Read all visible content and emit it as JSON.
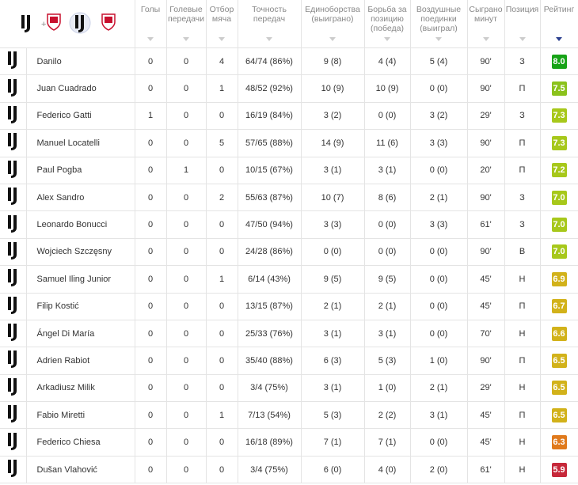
{
  "header": {
    "columns": [
      "Голы",
      "Голевые передачи",
      "Отбор мяча",
      "Точность передач",
      "Единоборства (выиграно)",
      "Борьба за позицию (победа)",
      "Воздушные поединки (выиграл)",
      "Сыграно минут",
      "Позиция",
      "Рейтинг"
    ]
  },
  "table": {
    "rows": [
      [
        "Danilo",
        "0",
        "0",
        "4",
        "64/74 (86%)",
        "9 (8)",
        "4 (4)",
        "5 (4)",
        "90'",
        "З",
        "8.0"
      ],
      [
        "Juan Cuadrado",
        "0",
        "0",
        "1",
        "48/52 (92%)",
        "10 (9)",
        "10 (9)",
        "0 (0)",
        "90'",
        "П",
        "7.5"
      ],
      [
        "Federico Gatti",
        "1",
        "0",
        "0",
        "16/19 (84%)",
        "3 (2)",
        "0 (0)",
        "3 (2)",
        "29'",
        "З",
        "7.3"
      ],
      [
        "Manuel Locatelli",
        "0",
        "0",
        "5",
        "57/65 (88%)",
        "14 (9)",
        "11 (6)",
        "3 (3)",
        "90'",
        "П",
        "7.3"
      ],
      [
        "Paul Pogba",
        "0",
        "1",
        "0",
        "10/15 (67%)",
        "3 (1)",
        "3 (1)",
        "0 (0)",
        "20'",
        "П",
        "7.2"
      ],
      [
        "Alex Sandro",
        "0",
        "0",
        "2",
        "55/63 (87%)",
        "10 (7)",
        "8 (6)",
        "2 (1)",
        "90'",
        "З",
        "7.0"
      ],
      [
        "Leonardo Bonucci",
        "0",
        "0",
        "0",
        "47/50 (94%)",
        "3 (3)",
        "0 (0)",
        "3 (3)",
        "61'",
        "З",
        "7.0"
      ],
      [
        "Wojciech Szczęsny",
        "0",
        "0",
        "0",
        "24/28 (86%)",
        "0 (0)",
        "0 (0)",
        "0 (0)",
        "90'",
        "В",
        "7.0"
      ],
      [
        "Samuel Iling Junior",
        "0",
        "0",
        "1",
        "6/14 (43%)",
        "9 (5)",
        "9 (5)",
        "0 (0)",
        "45'",
        "Н",
        "6.9"
      ],
      [
        "Filip Kostić",
        "0",
        "0",
        "0",
        "13/15 (87%)",
        "2 (1)",
        "2 (1)",
        "0 (0)",
        "45'",
        "П",
        "6.7"
      ],
      [
        "Ángel Di María",
        "0",
        "0",
        "0",
        "25/33 (76%)",
        "3 (1)",
        "3 (1)",
        "0 (0)",
        "70'",
        "Н",
        "6.6"
      ],
      [
        "Adrien Rabiot",
        "0",
        "0",
        "0",
        "35/40 (88%)",
        "6 (3)",
        "5 (3)",
        "1 (0)",
        "90'",
        "П",
        "6.5"
      ],
      [
        "Arkadiusz Milik",
        "0",
        "0",
        "0",
        "3/4 (75%)",
        "3 (1)",
        "1 (0)",
        "2 (1)",
        "29'",
        "Н",
        "6.5"
      ],
      [
        "Fabio Miretti",
        "0",
        "0",
        "1",
        "7/13 (54%)",
        "5 (3)",
        "2 (2)",
        "3 (1)",
        "45'",
        "П",
        "6.5"
      ],
      [
        "Federico Chiesa",
        "0",
        "0",
        "0",
        "16/18 (89%)",
        "7 (1)",
        "7 (1)",
        "0 (0)",
        "45'",
        "Н",
        "6.3"
      ],
      [
        "Dušan Vlahović",
        "0",
        "0",
        "0",
        "3/4 (75%)",
        "6 (0)",
        "4 (0)",
        "2 (0)",
        "61'",
        "Н",
        "5.9"
      ]
    ]
  }
}
